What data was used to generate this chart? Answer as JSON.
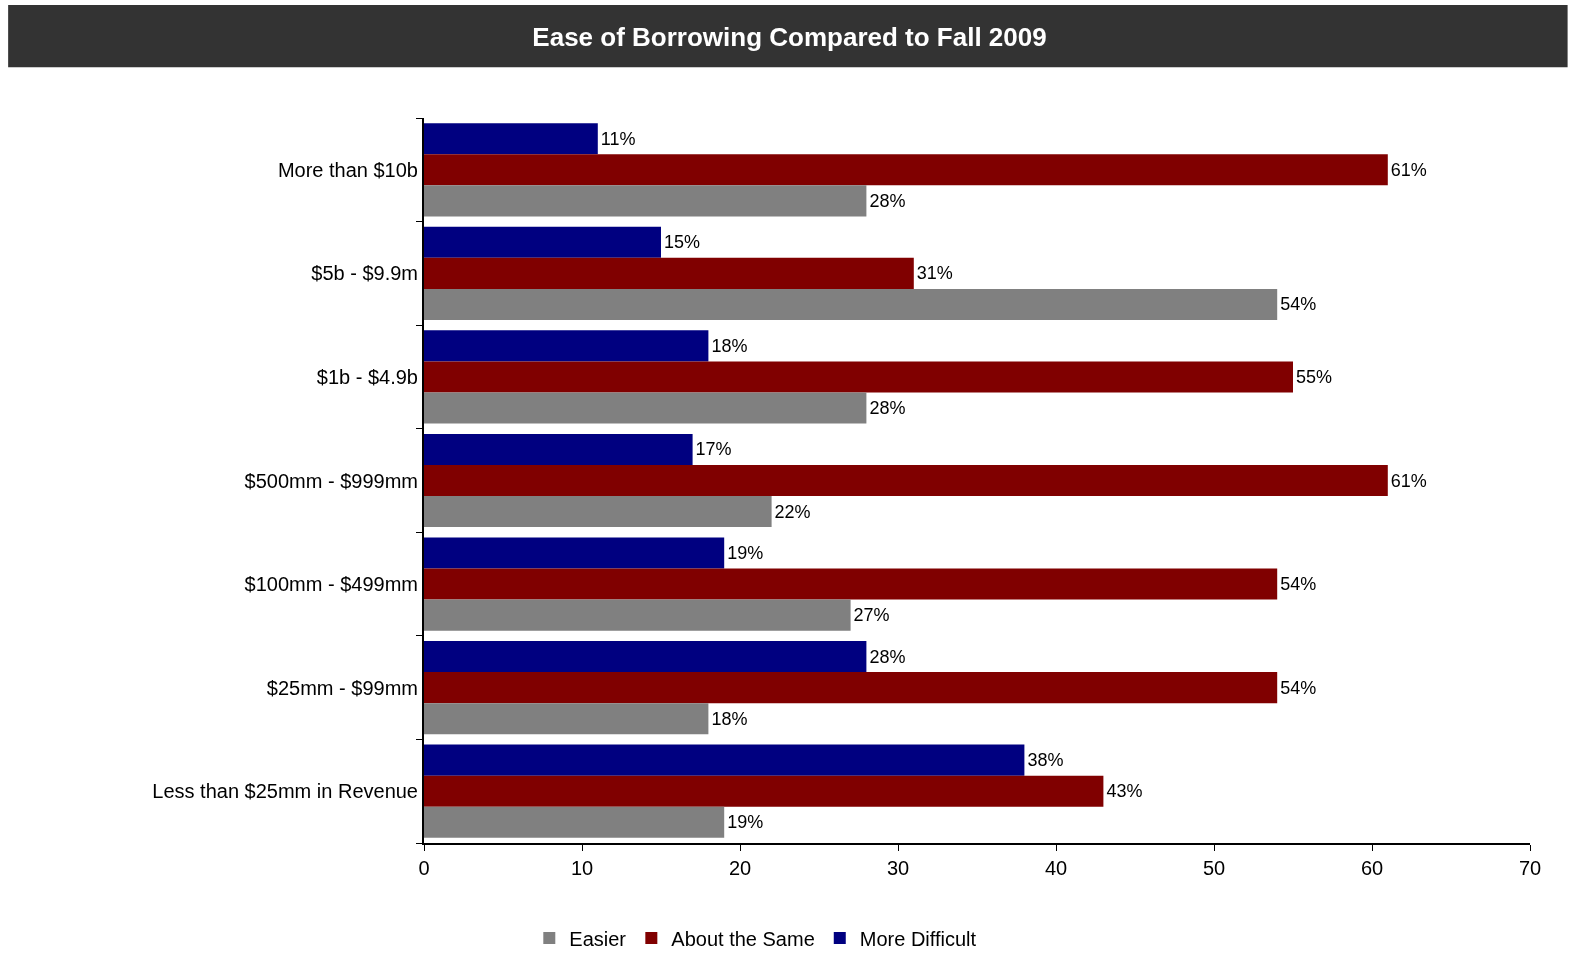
{
  "chart_data": {
    "type": "bar",
    "orientation": "horizontal",
    "title": "Ease of Borrowing Compared to Fall 2009",
    "categories": [
      "More than $10b",
      "$5b - $9.9m",
      "$1b - $4.9b",
      "$500mm - $999mm",
      "$100mm - $499mm",
      "$25mm - $99mm",
      "Less than $25mm in Revenue"
    ],
    "series": [
      {
        "name": "Easier",
        "color": "#808080",
        "values": [
          28,
          54,
          28,
          22,
          27,
          18,
          19
        ],
        "value_labels": [
          "28%",
          "54%",
          "28%",
          "22%",
          "27%",
          "18%",
          "19%"
        ]
      },
      {
        "name": "About the Same",
        "color": "#800000",
        "values": [
          61,
          31,
          55,
          61,
          54,
          54,
          43
        ],
        "value_labels": [
          "61%",
          "31%",
          "55%",
          "61%",
          "54%",
          "54%",
          "43%"
        ]
      },
      {
        "name": "More Difficult",
        "color": "#000080",
        "values": [
          11,
          15,
          18,
          17,
          19,
          28,
          38
        ],
        "value_labels": [
          "11%",
          "15%",
          "18%",
          "17%",
          "19%",
          "28%",
          "38%"
        ]
      }
    ],
    "xlim": [
      0,
      70
    ],
    "xticks": [
      0,
      10,
      20,
      30,
      40,
      50,
      60,
      70
    ],
    "legend": "bottom"
  }
}
